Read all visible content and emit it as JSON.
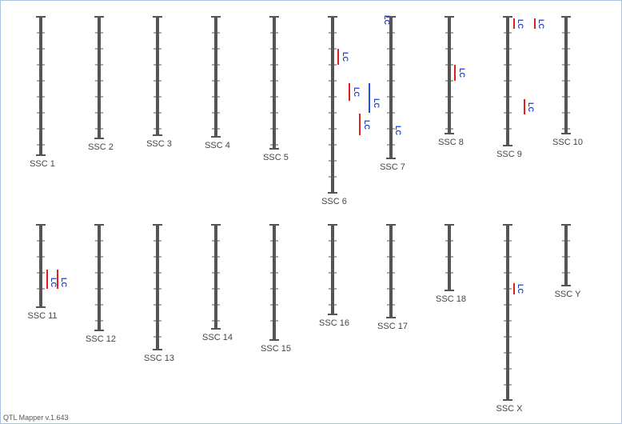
{
  "chromosomes": [
    {
      "label": "SSC 1",
      "qtls": []
    },
    {
      "label": "SSC 2",
      "qtls": []
    },
    {
      "label": "SSC 3",
      "qtls": []
    },
    {
      "label": "SSC 4",
      "qtls": []
    },
    {
      "label": "SSC 5",
      "qtls": []
    },
    {
      "label": "SSC 6",
      "qtls": [
        "LC",
        "LC",
        "LC"
      ]
    },
    {
      "label": "SSC 7",
      "qtls": [
        "LC",
        "LC",
        "LC"
      ]
    },
    {
      "label": "SSC 8",
      "qtls": [
        "LC"
      ]
    },
    {
      "label": "SSC 9",
      "qtls": [
        "LC",
        "LC",
        "LC"
      ]
    },
    {
      "label": "SSC 10",
      "qtls": []
    },
    {
      "label": "SSC 11",
      "qtls": [
        "LC",
        "LC"
      ]
    },
    {
      "label": "SSC 12",
      "qtls": []
    },
    {
      "label": "SSC 13",
      "qtls": []
    },
    {
      "label": "SSC 14",
      "qtls": []
    },
    {
      "label": "SSC 15",
      "qtls": []
    },
    {
      "label": "SSC 16",
      "qtls": []
    },
    {
      "label": "SSC 17",
      "qtls": []
    },
    {
      "label": "SSC 18",
      "qtls": []
    },
    {
      "label": "SSC X",
      "qtls": [
        "LC"
      ]
    },
    {
      "label": "SSC Y",
      "qtls": []
    }
  ],
  "footer": "QTL Mapper v.1.643"
}
